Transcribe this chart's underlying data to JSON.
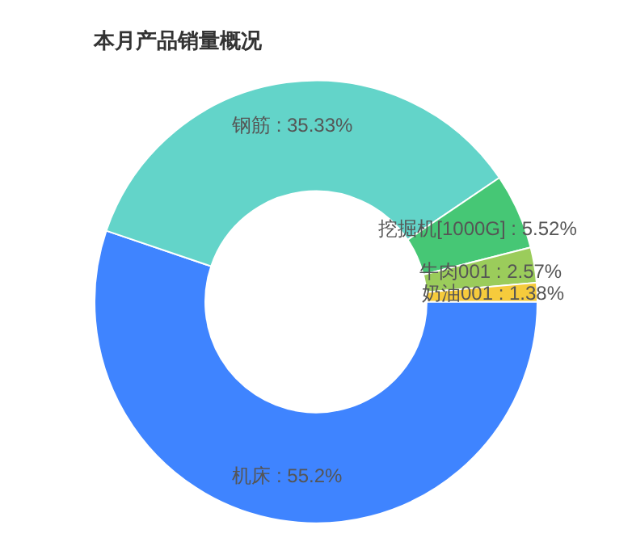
{
  "chart_data": {
    "type": "donut",
    "title": "本月产品销量概况",
    "categories": [
      "机床",
      "钢筋",
      "挖掘机[1000G]",
      "牛肉001",
      "奶油001"
    ],
    "values": [
      55.2,
      35.33,
      5.52,
      2.57,
      1.38
    ],
    "colors": [
      "#3f84ff",
      "#63d4c9",
      "#46c775",
      "#9bcc5b",
      "#f6cb3c"
    ],
    "value_labels": [
      "55.2%",
      "35.33%",
      "5.52%",
      "2.57%",
      "1.38%"
    ],
    "legend": false
  }
}
